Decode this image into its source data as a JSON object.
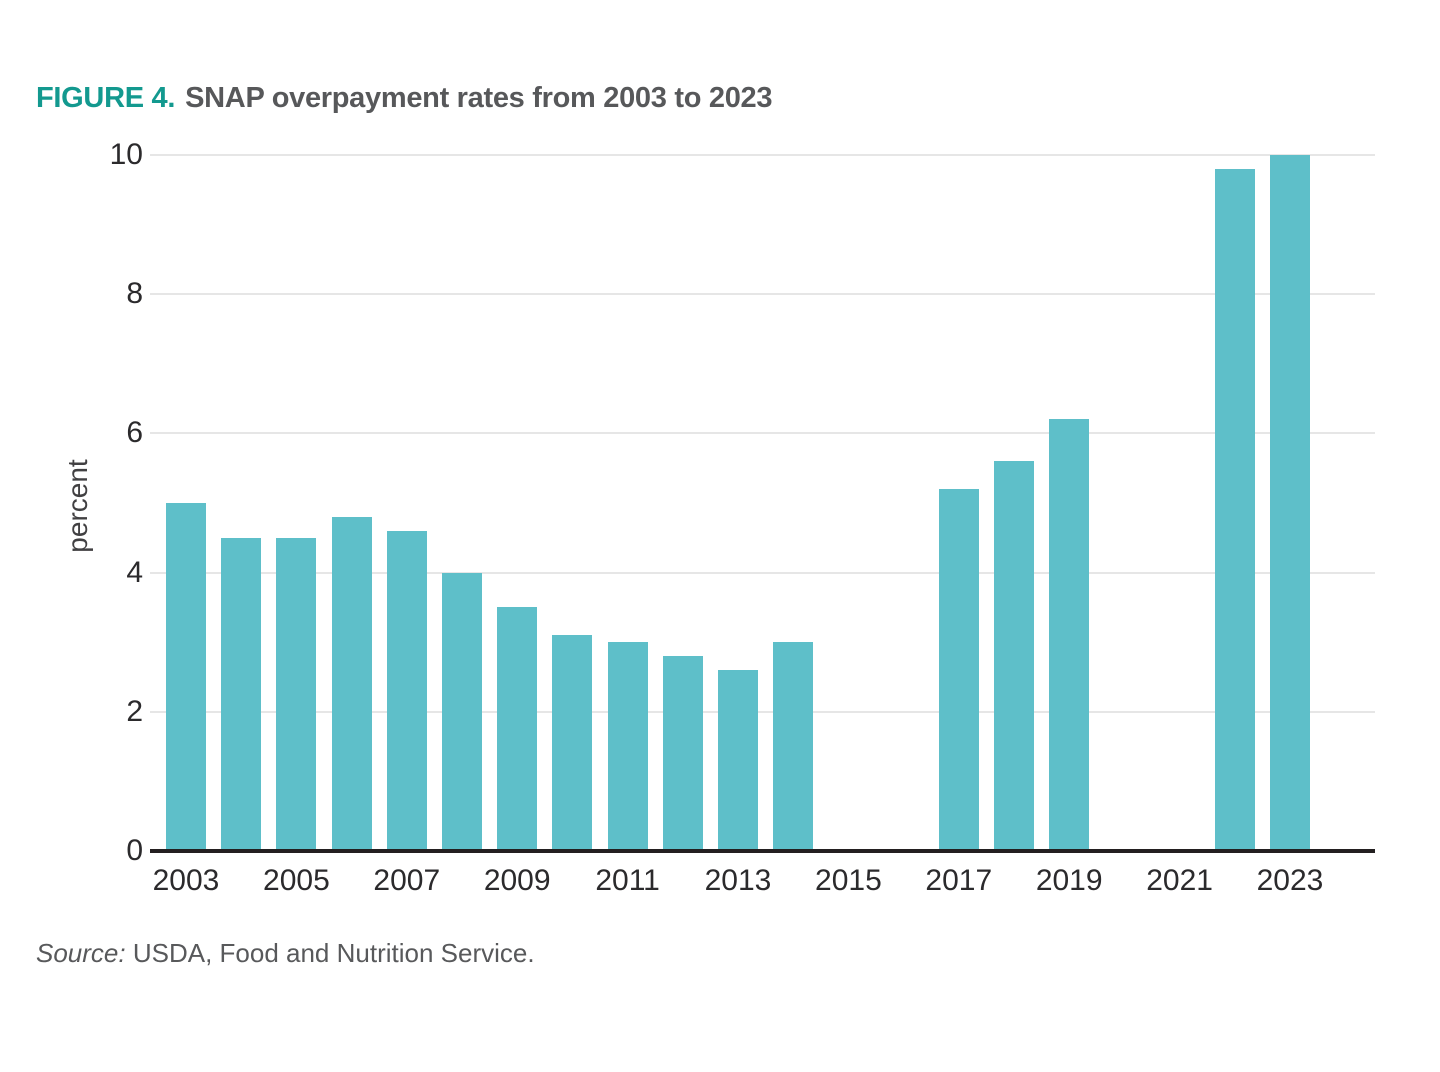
{
  "figure": {
    "label": "FIGURE 4.",
    "title": "SNAP overpayment rates from 2003 to 2023",
    "accent_color": "#13998F",
    "title_color": "#57585A"
  },
  "chart_data": {
    "type": "bar",
    "title": "SNAP overpayment rates from 2003 to 2023",
    "title_prefix": "FIGURE 4.",
    "xlabel": "",
    "ylabel": "percent",
    "ylim": [
      0,
      10
    ],
    "yticks": [
      0,
      2,
      4,
      6,
      8,
      10
    ],
    "xtick_labels": [
      "2003",
      "2005",
      "2007",
      "2009",
      "2011",
      "2013",
      "2015",
      "2017",
      "2019",
      "2021",
      "2023"
    ],
    "categories": [
      2003,
      2004,
      2005,
      2006,
      2007,
      2008,
      2009,
      2010,
      2011,
      2012,
      2013,
      2014,
      2015,
      2016,
      2017,
      2018,
      2019,
      2020,
      2021,
      2022,
      2023
    ],
    "values": [
      5.0,
      4.5,
      4.5,
      4.8,
      4.6,
      4.0,
      3.5,
      3.1,
      3.0,
      2.8,
      2.6,
      3.0,
      null,
      null,
      5.2,
      5.6,
      6.2,
      null,
      null,
      9.8,
      10.0
    ],
    "missing_years": [
      2015,
      2016,
      2020,
      2021
    ],
    "bar_color": "#5EBFC9",
    "grid": true,
    "gridline_color": "#E6E6E6",
    "axis_line_color": "#231F20",
    "legend": "none"
  },
  "source": {
    "prefix": "Source:",
    "text": " USDA, Food and Nutrition Service."
  }
}
